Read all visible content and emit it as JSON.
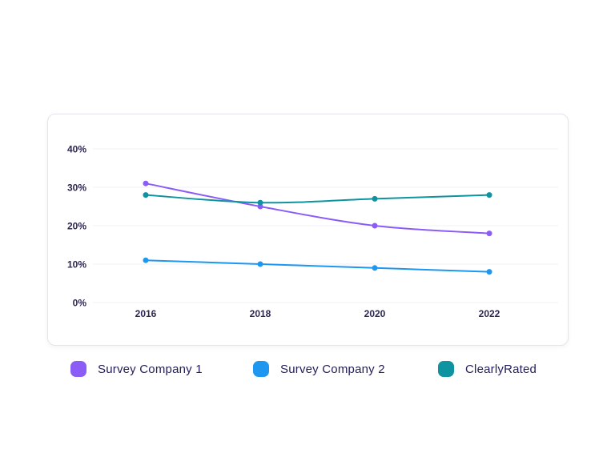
{
  "chart_data": {
    "type": "line",
    "categories": [
      "2016",
      "2018",
      "2020",
      "2022"
    ],
    "series": [
      {
        "name": "Survey Company 1",
        "color": "#8b5cf6",
        "values": [
          31,
          25,
          20,
          18
        ]
      },
      {
        "name": "Survey Company 2",
        "color": "#1e97f0",
        "values": [
          11,
          10,
          9,
          8
        ]
      },
      {
        "name": "ClearlyRated",
        "color": "#0e93a0",
        "values": [
          28,
          26,
          27,
          28
        ]
      }
    ],
    "ytick_labels": [
      "0%",
      "10%",
      "20%",
      "30%",
      "40%"
    ],
    "ytick_values": [
      0,
      10,
      20,
      30,
      40
    ],
    "ylim": [
      0,
      40
    ],
    "grid": true,
    "legend_position": "bottom",
    "axis_text_color": "#2b2850",
    "gridline_color": "#f0f0f4"
  },
  "legend": {
    "items": [
      {
        "label": "Survey Company 1",
        "color": "#8b5cf6"
      },
      {
        "label": "Survey Company 2",
        "color": "#1e97f0"
      },
      {
        "label": "ClearlyRated",
        "color": "#0e93a0"
      }
    ]
  }
}
